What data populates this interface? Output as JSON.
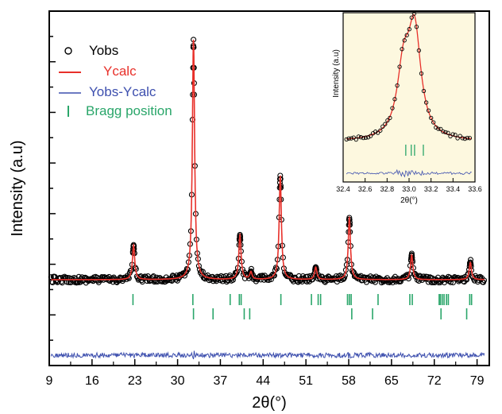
{
  "chart_data": [
    {
      "type": "line",
      "xlabel": "2θ(°)",
      "ylabel": "Intensity (a.u)",
      "xlim": [
        9,
        81
      ],
      "x_ticks": [
        9,
        16,
        23,
        30,
        37,
        44,
        51,
        58,
        65,
        72,
        79
      ],
      "y_ticks_labeled": false,
      "legend": [
        {
          "label": "Yobs",
          "color": "#000000",
          "marker": "open-circle"
        },
        {
          "label": "Ycalc",
          "color": "#e8302a",
          "marker": "line"
        },
        {
          "label": "Yobs-Ycalc",
          "color": "#3d4fae",
          "marker": "line"
        },
        {
          "label": "Bragg position",
          "color": "#2aa66a",
          "marker": "vertical-bar"
        }
      ],
      "legend_position": "top-left",
      "baseline_intensity": 0.03,
      "peaks": [
        {
          "two_theta": 22.8,
          "intensity": 0.17
        },
        {
          "two_theta": 32.6,
          "intensity": 1.0
        },
        {
          "two_theta": 40.2,
          "intensity": 0.21
        },
        {
          "two_theta": 42.0,
          "intensity": 0.06
        },
        {
          "two_theta": 46.8,
          "intensity": 0.45
        },
        {
          "two_theta": 52.6,
          "intensity": 0.08
        },
        {
          "two_theta": 58.1,
          "intensity": 0.28
        },
        {
          "two_theta": 68.3,
          "intensity": 0.13
        },
        {
          "two_theta": 77.9,
          "intensity": 0.1
        }
      ],
      "bragg_positions_row1": [
        22.7,
        32.5,
        38.6,
        40.1,
        40.4,
        46.9,
        51.9,
        53.0,
        53.4,
        57.8,
        58.1,
        58.4,
        62.8,
        68.0,
        68.4,
        72.8,
        73.0,
        73.3,
        73.6,
        74.0,
        74.3,
        77.8,
        78.1
      ],
      "bragg_positions_row2": [
        32.6,
        35.8,
        40.9,
        41.8,
        58.5,
        61.9,
        73.1,
        77.3
      ]
    },
    {
      "type": "line",
      "title": "",
      "xlabel": "2θ(°)",
      "ylabel": "Intensity (a.u)",
      "xlim": [
        32.4,
        33.6
      ],
      "x_ticks": [
        "32.4",
        "32.6",
        "32.8",
        "33.0",
        "33.2",
        "33.4",
        "33.6"
      ],
      "background_color": "#fdf8df",
      "peaks": [
        {
          "two_theta": 33.05,
          "intensity": 1.0
        },
        {
          "two_theta": 32.95,
          "intensity": 0.62
        }
      ],
      "bragg_positions": [
        32.97,
        33.02,
        33.05,
        33.13
      ]
    }
  ]
}
